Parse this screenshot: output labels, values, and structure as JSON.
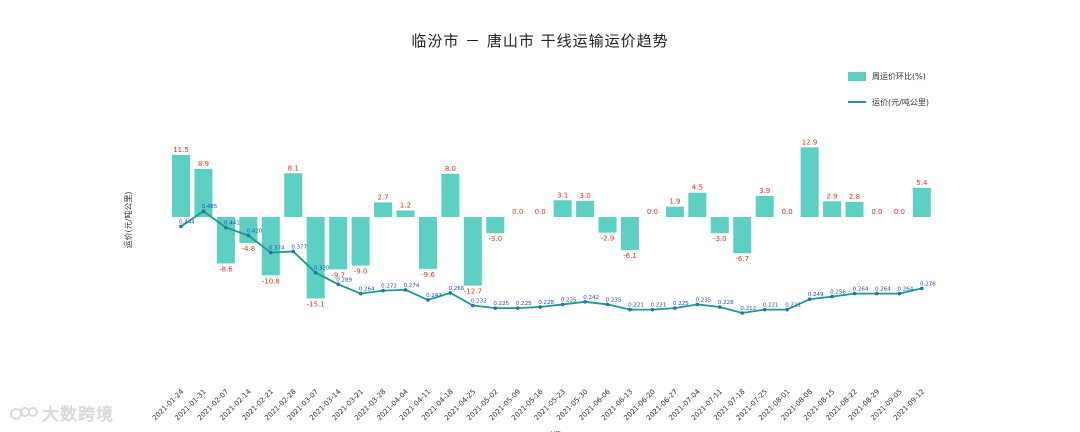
{
  "chart_data": {
    "type": "bar",
    "title": "临汾市 － 唐山市 干线运输运价趋势",
    "xlabel": "时间",
    "ylabel": "运价(元/吨公里)",
    "legend_position": "top-right",
    "categories": [
      "2021-01-24",
      "2021-01-31",
      "2021-02-07",
      "2021-02-14",
      "2021-02-21",
      "2021-02-28",
      "2021-03-07",
      "2021-03-14",
      "2021-03-21",
      "2021-03-28",
      "2021-04-04",
      "2021-04-11",
      "2021-04-18",
      "2021-04-25",
      "2021-05-02",
      "2021-05-09",
      "2021-05-16",
      "2021-05-23",
      "2021-05-30",
      "2021-06-06",
      "2021-06-13",
      "2021-06-20",
      "2021-06-27",
      "2021-07-04",
      "2021-07-11",
      "2021-07-18",
      "2021-07-25",
      "2021-08-01",
      "2021-08-08",
      "2021-08-15",
      "2021-08-22",
      "2021-08-29",
      "2021-09-05",
      "2021-09-12"
    ],
    "series": [
      {
        "name": "周运价环比(%)",
        "type": "bar",
        "color": "#5bd0c3",
        "values": [
          11.5,
          8.9,
          -8.6,
          -4.8,
          -10.8,
          8.1,
          -15.1,
          -9.7,
          -9.0,
          2.7,
          1.2,
          -9.6,
          8.0,
          -12.7,
          -3.0,
          0.0,
          0.0,
          3.1,
          3.0,
          -2.9,
          -6.1,
          0.0,
          1.9,
          4.5,
          -3.0,
          -6.7,
          3.9,
          0.0,
          12.9,
          2.9,
          2.8,
          0.0,
          0.0,
          5.4
        ],
        "labels": [
          "11.5",
          "8.9",
          "-8.6",
          "-4.8",
          "-10.8",
          "8.1",
          "-15.1",
          "-9.7",
          "-9.0",
          "2.7",
          "1.2",
          "-9.6",
          "8.0",
          "-12.7",
          "-3.0",
          "0.0",
          "0.0",
          "3.1",
          "3.0",
          "-2.9",
          "-6.1",
          "0.0",
          "1.9",
          "4.5",
          "-3.0",
          "-6.7",
          "3.9",
          "0.0",
          "12.9",
          "2.9",
          "2.8",
          "0.0",
          "0.0",
          "5.4"
        ]
      },
      {
        "name": "运价(元/吨公里)",
        "type": "line",
        "color": "#1a9a8c",
        "values": [
          0.444,
          0.485,
          0.441,
          0.42,
          0.374,
          0.377,
          0.32,
          0.289,
          0.264,
          0.272,
          0.274,
          0.247,
          0.266,
          0.232,
          0.225,
          0.225,
          0.228,
          0.235,
          0.242,
          0.235,
          0.221,
          0.221,
          0.225,
          0.235,
          0.228,
          0.212,
          0.221,
          0.221,
          0.249,
          0.256,
          0.264,
          0.264,
          0.264,
          0.278
        ],
        "labels": [
          "0.444",
          "0.485",
          "0.441",
          "0.420",
          "0.374",
          "0.377",
          "0.320",
          "0.289",
          "0.264",
          "0.272",
          "0.274",
          "0.247",
          "0.266",
          "0.232",
          "0.225",
          "0.225",
          "0.228",
          "0.235",
          "0.242",
          "0.235",
          "0.221",
          "0.221",
          "0.225",
          "0.235",
          "0.228",
          "0.212",
          "0.221",
          "0.221",
          "0.249",
          "0.256",
          "0.264",
          "0.264",
          "0.264",
          "0.278"
        ]
      }
    ],
    "grid": false
  },
  "watermark": {
    "text": "大数跨境",
    "logo_icon": "dsk-logo-icon"
  }
}
